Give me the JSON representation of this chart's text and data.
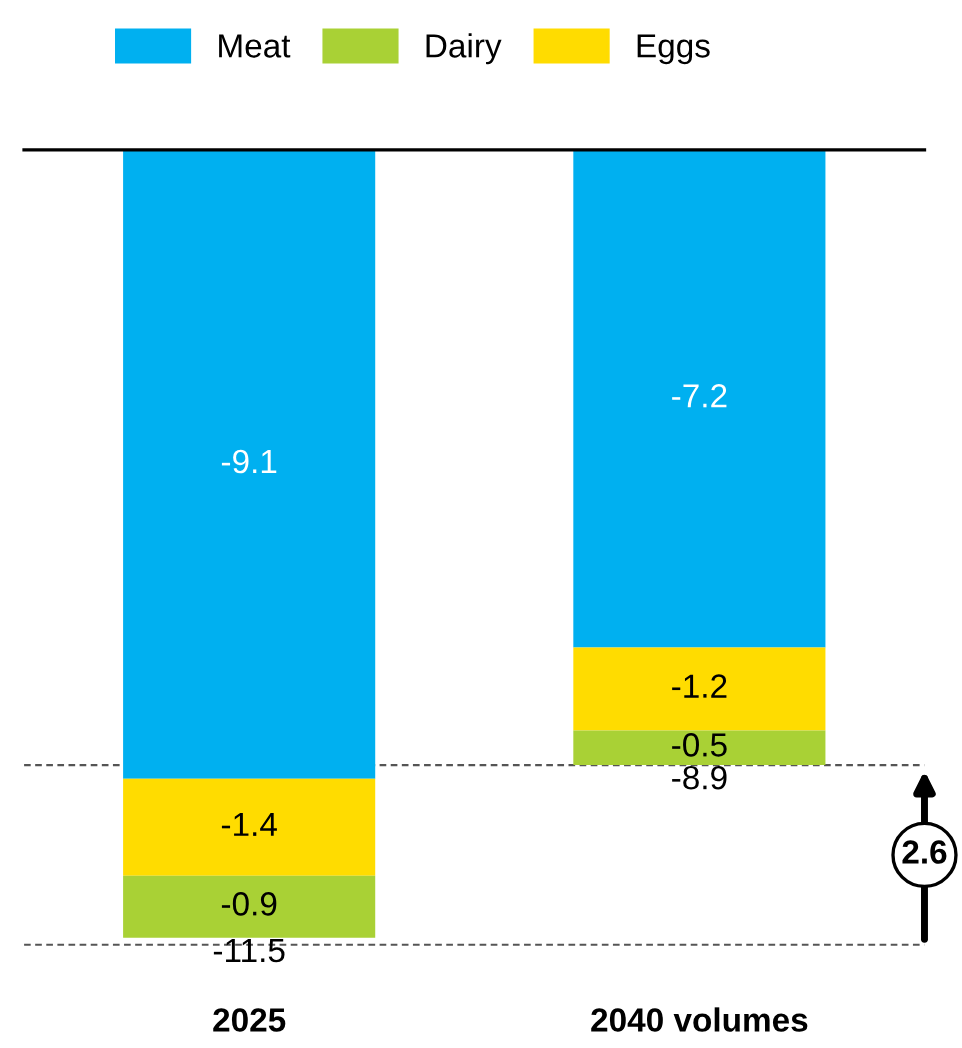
{
  "chart_data": {
    "type": "bar",
    "stacked": true,
    "categories": [
      "2025",
      "2040 volumes"
    ],
    "series": [
      {
        "name": "Meat",
        "color": "#00b0f0",
        "values": [
          -9.1,
          -7.2
        ]
      },
      {
        "name": "Eggs",
        "color": "#ffdc00",
        "values": [
          -1.4,
          -1.2
        ]
      },
      {
        "name": "Dairy",
        "color": "#a9d135",
        "values": [
          -0.9,
          -0.5
        ]
      }
    ],
    "tick_labels": "x",
    "data_labels": true,
    "totals": [
      "-11.5",
      "-8.9"
    ],
    "ref_lines": [
      {
        "axis": "y",
        "value": -11.5,
        "color": "#555555",
        "line_style": "dashed"
      },
      {
        "axis": "y",
        "value": -8.9,
        "color": "#555555",
        "line_style": "dashed"
      }
    ],
    "annotations": [
      "2.6"
    ],
    "legend": "top",
    "grid": false
  }
}
